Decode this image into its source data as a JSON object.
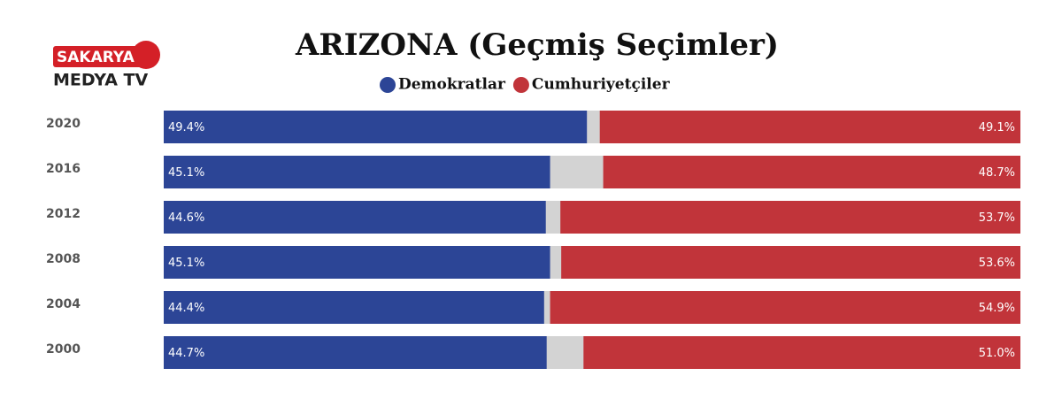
{
  "logo": {
    "top": "SAKARYA",
    "bottom": "MEDYA TV"
  },
  "chart_data": {
    "type": "bar",
    "orientation": "horizontal",
    "title": "ARIZONA (Geçmiş Seçimler)",
    "categories": [
      "2020",
      "2016",
      "2012",
      "2008",
      "2004",
      "2000"
    ],
    "xlim": [
      0,
      100
    ],
    "series": [
      {
        "name": "Demokratlar",
        "color": "#2c4596",
        "side": "left",
        "values": [
          49.4,
          45.1,
          44.6,
          45.1,
          44.4,
          44.7
        ],
        "value_labels": [
          "49.4%",
          "45.1%",
          "44.6%",
          "45.1%",
          "44.4%",
          "44.7%"
        ]
      },
      {
        "name": "Cumhuriyetçiler",
        "color": "#c1343a",
        "side": "right",
        "values": [
          49.1,
          48.7,
          53.7,
          53.6,
          54.9,
          51.0
        ],
        "value_labels": [
          "49.1%",
          "48.7%",
          "53.7%",
          "53.6%",
          "54.9%",
          "51.0%"
        ]
      }
    ]
  }
}
